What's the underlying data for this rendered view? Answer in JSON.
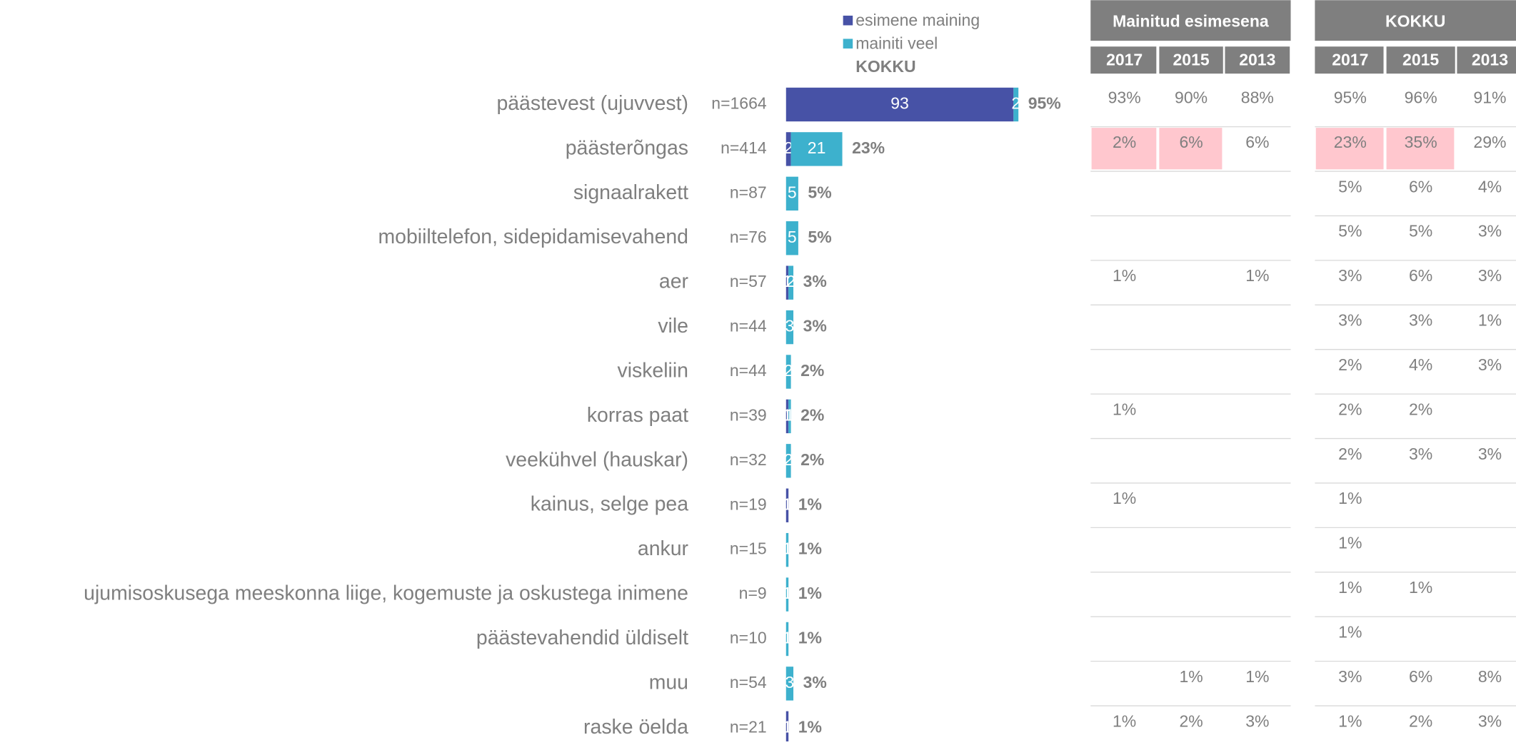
{
  "chart_data": {
    "type": "bar",
    "orientation": "horizontal",
    "stacked": true,
    "total_label": "KOKKU",
    "categories": [
      "päästevest (ujuvvest)",
      "päästerõngas",
      "signaalrakett",
      "mobiiltelefon, sidepidamisevahend",
      "aer",
      "vile",
      "viskeliin",
      "korras paat",
      "veekühvel (hauskar)",
      "kainus, selge pea",
      "ankur",
      "ujumisoskusega meeskonna liige, kogemuste ja oskustega inimene",
      "päästevahendid üldiselt",
      "muu",
      "raske öelda"
    ],
    "n_labels": [
      "n=1664",
      "n=414",
      "n=87",
      "n=76",
      "n=57",
      "n=44",
      "n=44",
      "n=39",
      "n=32",
      "n=19",
      "n=15",
      "n=9",
      "n=10",
      "n=54",
      "n=21"
    ],
    "series": [
      {
        "name": "esimene maining",
        "color": "#4752a6",
        "values": [
          93,
          2,
          0,
          0,
          1,
          0,
          0,
          1,
          0,
          1,
          0,
          0,
          0,
          0,
          1
        ]
      },
      {
        "name": "mainiti veel",
        "color": "#3db1cd",
        "values": [
          2,
          21,
          5,
          5,
          2,
          3,
          2,
          1,
          2,
          0,
          1,
          1,
          1,
          3,
          0
        ]
      }
    ],
    "totals": {
      "values": [
        95,
        23,
        5,
        5,
        3,
        3,
        2,
        2,
        2,
        1,
        1,
        1,
        1,
        3,
        1
      ],
      "value_labels": [
        "95%",
        "23%",
        "5%",
        "5%",
        "3%",
        "3%",
        "2%",
        "2%",
        "2%",
        "1%",
        "1%",
        "1%",
        "1%",
        "3%",
        "1%"
      ]
    }
  },
  "tables": [
    {
      "title": "Mainitud esimesena",
      "columns": [
        "2017",
        "2015",
        "2013"
      ],
      "highlight": [
        [
          1,
          0
        ],
        [
          1,
          1
        ]
      ],
      "rows": [
        [
          "93%",
          "90%",
          "88%"
        ],
        [
          "2%",
          "6%",
          "6%"
        ],
        [
          null,
          null,
          null
        ],
        [
          null,
          null,
          null
        ],
        [
          "1%",
          null,
          "1%"
        ],
        [
          null,
          null,
          null
        ],
        [
          null,
          null,
          null
        ],
        [
          "1%",
          null,
          null
        ],
        [
          null,
          null,
          null
        ],
        [
          "1%",
          null,
          null
        ],
        [
          null,
          null,
          null
        ],
        [
          null,
          null,
          null
        ],
        [
          null,
          null,
          null
        ],
        [
          null,
          "1%",
          "1%"
        ],
        [
          "1%",
          "2%",
          "3%"
        ]
      ]
    },
    {
      "title": "KOKKU",
      "columns": [
        "2017",
        "2015",
        "2013"
      ],
      "highlight": [
        [
          1,
          0
        ],
        [
          1,
          1
        ]
      ],
      "rows": [
        [
          "95%",
          "96%",
          "91%"
        ],
        [
          "23%",
          "35%",
          "29%"
        ],
        [
          "5%",
          "6%",
          "4%"
        ],
        [
          "5%",
          "5%",
          "3%"
        ],
        [
          "3%",
          "6%",
          "3%"
        ],
        [
          "3%",
          "3%",
          "1%"
        ],
        [
          "2%",
          "4%",
          "3%"
        ],
        [
          "2%",
          "2%",
          null
        ],
        [
          "2%",
          "3%",
          "3%"
        ],
        [
          "1%",
          null,
          null
        ],
        [
          "1%",
          null,
          null
        ],
        [
          "1%",
          "1%",
          null
        ],
        [
          "1%",
          null,
          null
        ],
        [
          "3%",
          "6%",
          "8%"
        ],
        [
          "1%",
          "2%",
          "3%"
        ]
      ]
    }
  ]
}
